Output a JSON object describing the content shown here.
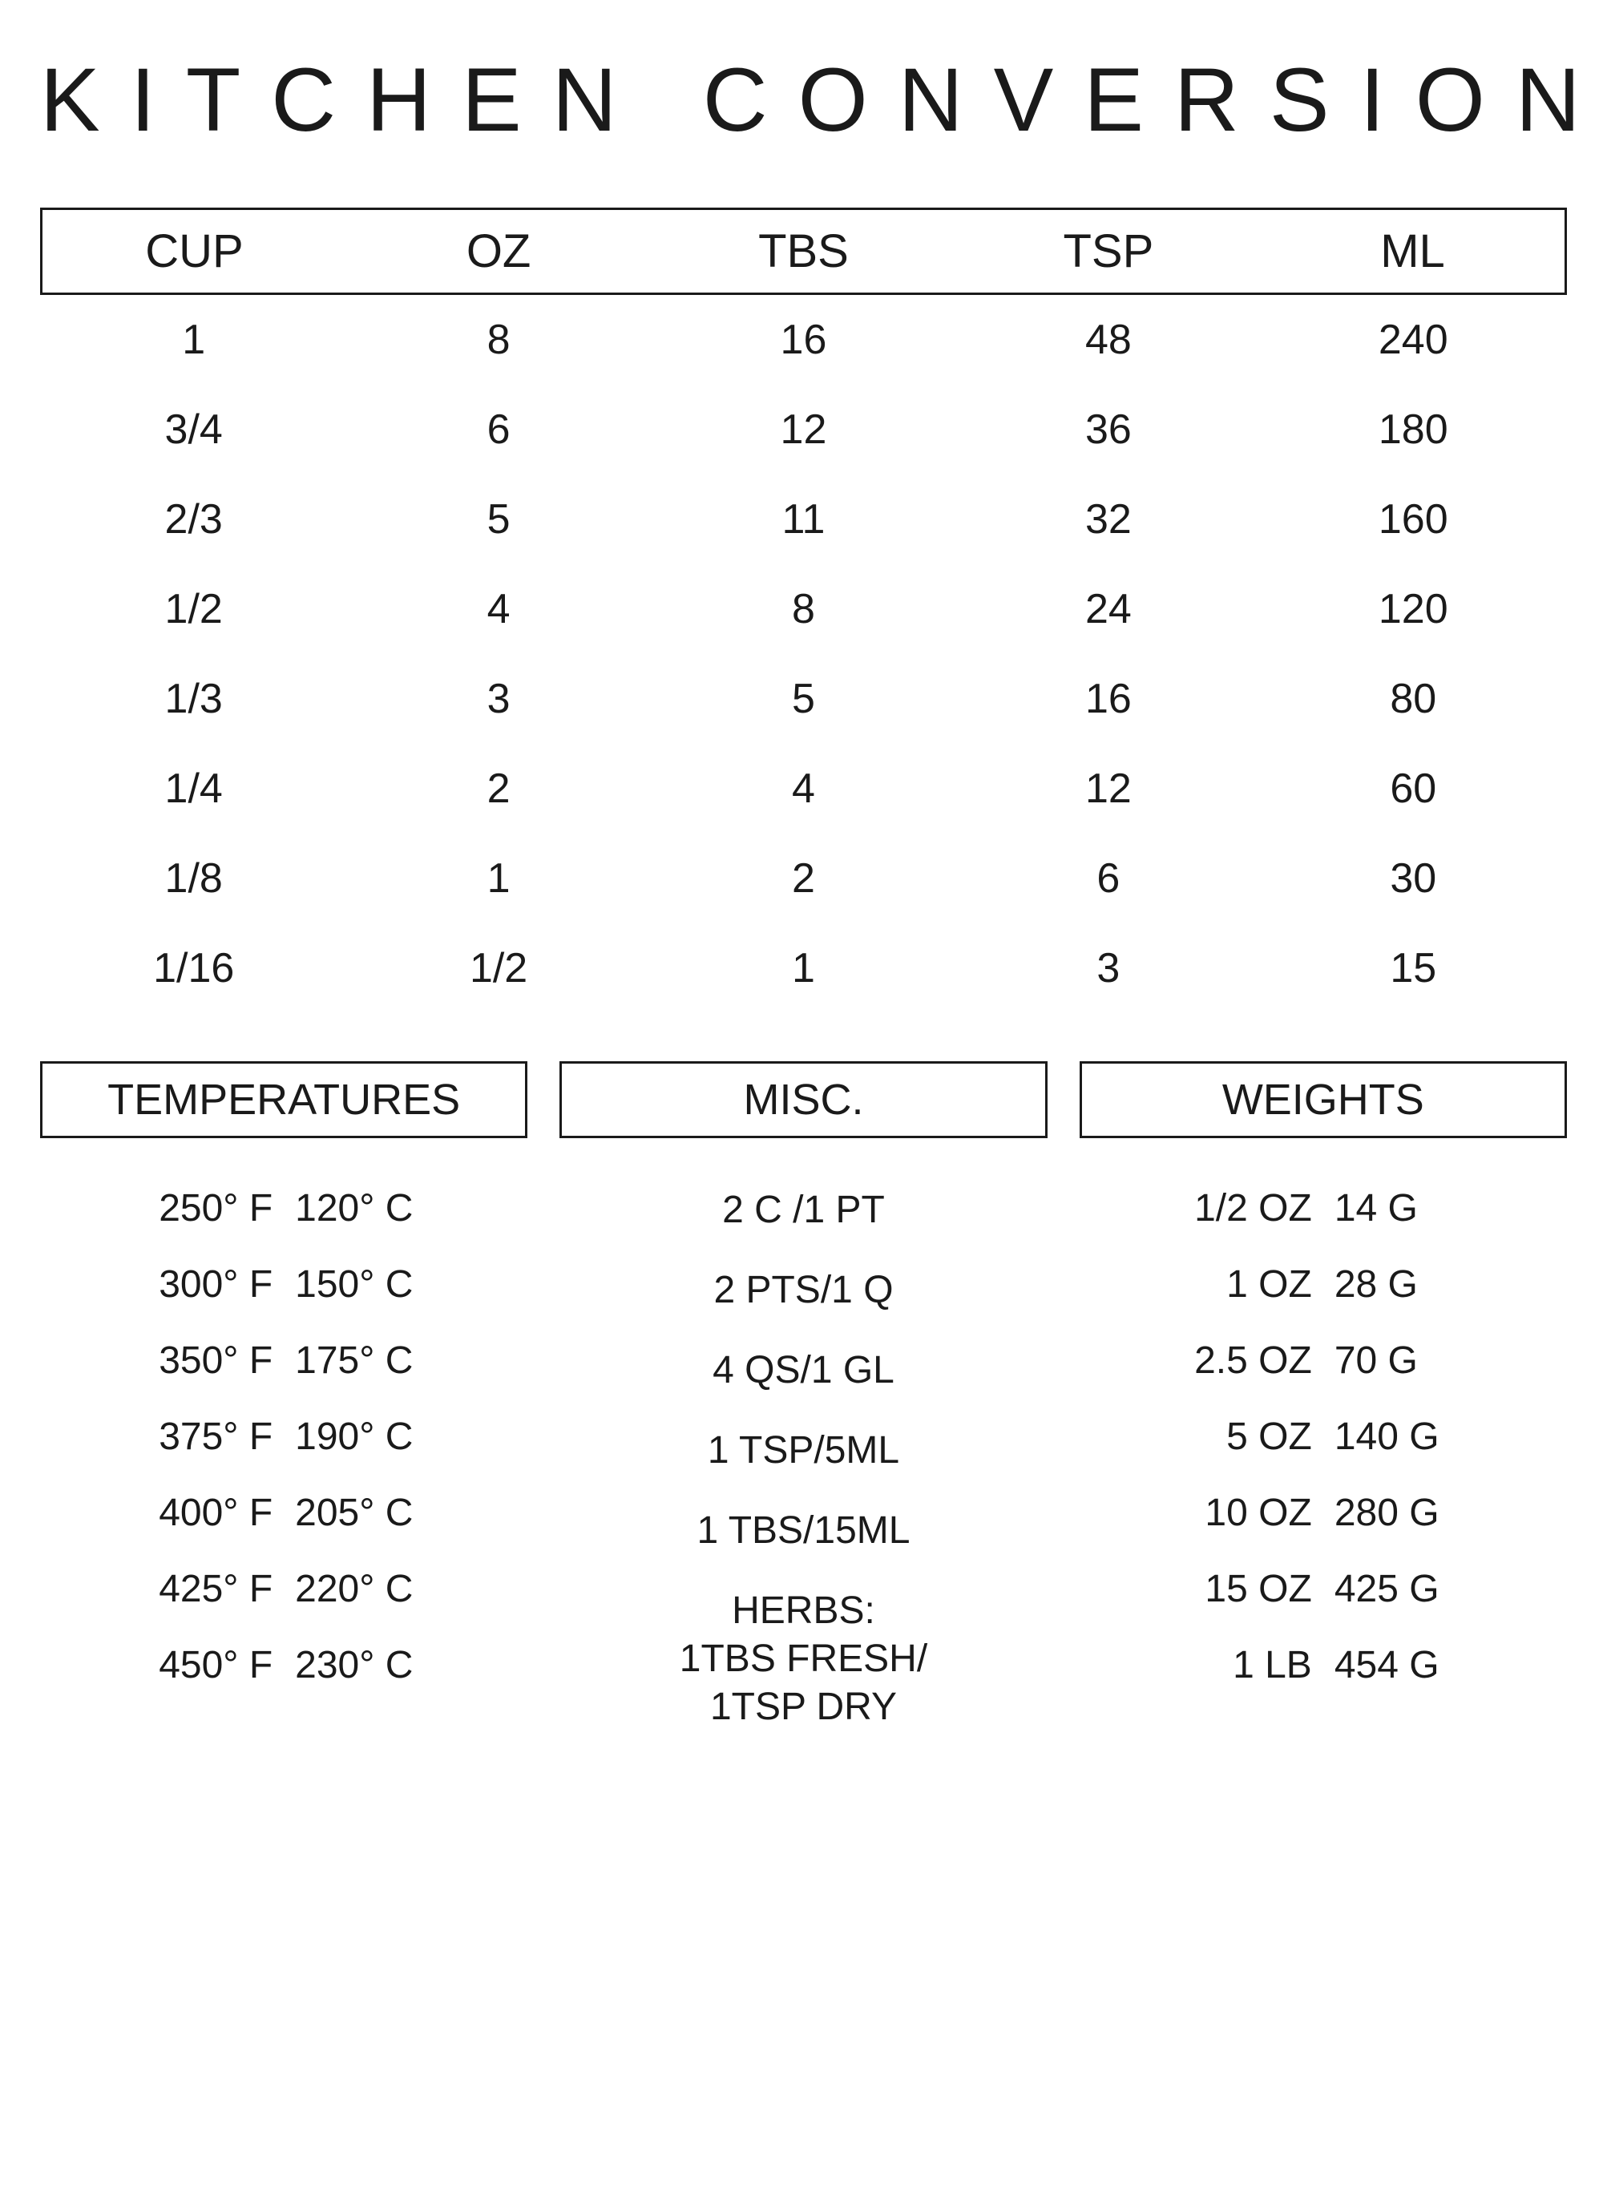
{
  "title": "KITCHEN CONVERSIONS",
  "colors": {
    "background": "#ffffff",
    "text": "#1a1a1a",
    "border": "#1a1a1a"
  },
  "typography": {
    "title_fontsize": 112,
    "title_letterspacing": 38,
    "header_fontsize": 58,
    "cell_fontsize": 52,
    "panel_header_fontsize": 54,
    "panel_row_fontsize": 48
  },
  "main": {
    "type": "table",
    "columns": [
      "CUP",
      "OZ",
      "TBS",
      "TSP",
      "ML"
    ],
    "rows": [
      [
        "1",
        "8",
        "16",
        "48",
        "240"
      ],
      [
        "3/4",
        "6",
        "12",
        "36",
        "180"
      ],
      [
        "2/3",
        "5",
        "11",
        "32",
        "160"
      ],
      [
        "1/2",
        "4",
        "8",
        "24",
        "120"
      ],
      [
        "1/3",
        "3",
        "5",
        "16",
        "80"
      ],
      [
        "1/4",
        "2",
        "4",
        "12",
        "60"
      ],
      [
        "1/8",
        "1",
        "2",
        "6",
        "30"
      ],
      [
        "1/16",
        "1/2",
        "1",
        "3",
        "15"
      ]
    ]
  },
  "temperatures": {
    "title": "TEMPERATURES",
    "rows": [
      {
        "f": "250° F",
        "c": "120° C"
      },
      {
        "f": "300° F",
        "c": "150° C"
      },
      {
        "f": "350° F",
        "c": "175° C"
      },
      {
        "f": "375° F",
        "c": "190° C"
      },
      {
        "f": "400° F",
        "c": "205° C"
      },
      {
        "f": "425° F",
        "c": "220° C"
      },
      {
        "f": "450° F",
        "c": "230° C"
      }
    ]
  },
  "misc": {
    "title": "MISC.",
    "rows": [
      "2 C /1 PT",
      "2 PTS/1 Q",
      "4 QS/1 GL",
      "1 TSP/5ML",
      "1 TBS/15ML",
      "HERBS:\n1TBS FRESH/\n1TSP DRY"
    ]
  },
  "weights": {
    "title": "WEIGHTS",
    "rows": [
      {
        "oz": "1/2 OZ",
        "g": "14 G"
      },
      {
        "oz": "1 OZ",
        "g": "28 G"
      },
      {
        "oz": "2.5 OZ",
        "g": "70 G"
      },
      {
        "oz": "5 OZ",
        "g": "140 G"
      },
      {
        "oz": "10 OZ",
        "g": "280 G"
      },
      {
        "oz": "15 OZ",
        "g": "425 G"
      },
      {
        "oz": "1 LB",
        "g": "454 G"
      }
    ]
  }
}
